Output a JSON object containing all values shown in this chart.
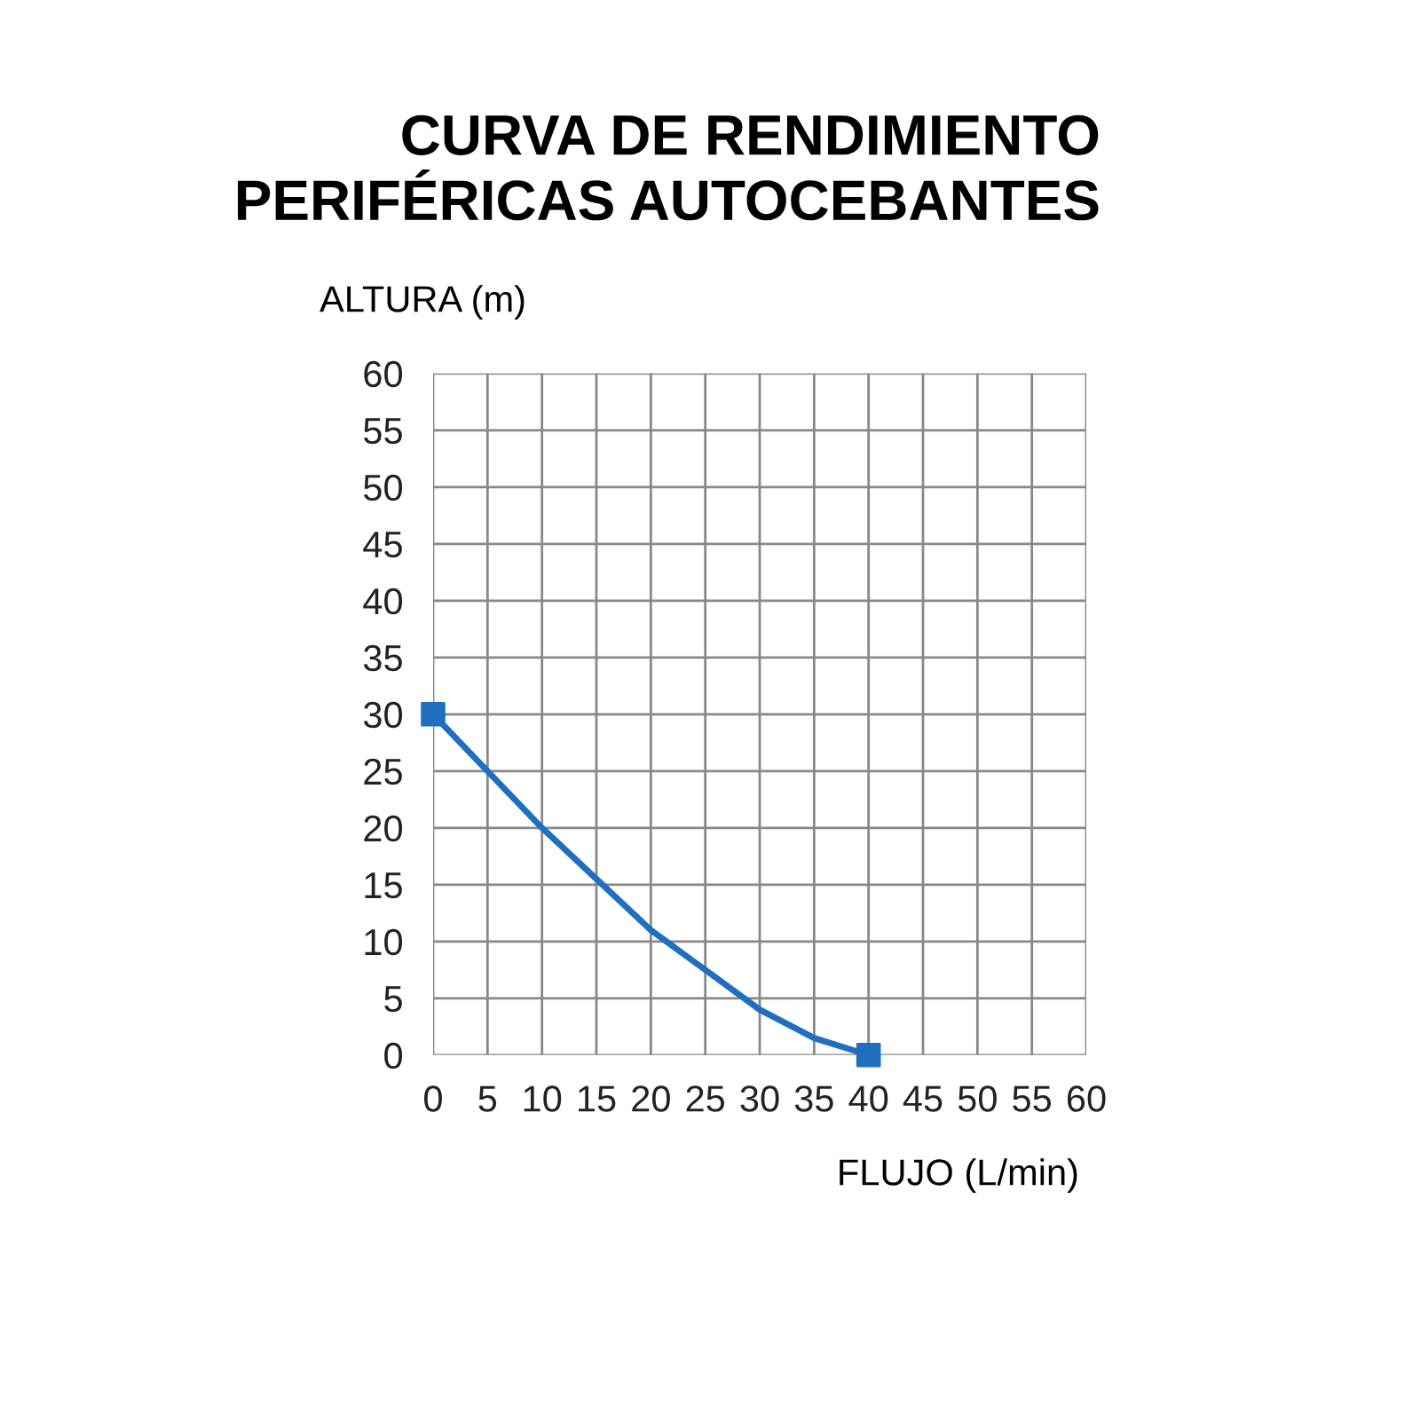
{
  "chart_data": {
    "type": "line",
    "title": "CURVA DE RENDIMIENTO\nPERIFÉRICAS AUTOCEBANTES",
    "xlabel": "FLUJO (L/min)",
    "ylabel": "ALTURA (m)",
    "series": [
      {
        "color": "#1f6fc0",
        "x": [
          0,
          5,
          10,
          15,
          20,
          25,
          30,
          35,
          40
        ],
        "values": [
          30,
          25,
          20,
          15.5,
          11,
          7.5,
          4,
          1.5,
          0
        ],
        "marker": "none"
      },
      {
        "type": "scatter",
        "color": "#1f6fc0",
        "x": [
          0,
          40
        ],
        "values": [
          30,
          0
        ],
        "marker": "square"
      }
    ],
    "xlim": [
      0,
      60
    ],
    "ylim": [
      0,
      60
    ],
    "xticks": [
      0,
      5,
      10,
      15,
      20,
      25,
      30,
      35,
      40,
      45,
      50,
      55,
      60
    ],
    "yticks": [
      0,
      5,
      10,
      15,
      20,
      25,
      30,
      35,
      40,
      45,
      50,
      55,
      60
    ],
    "grid": true
  }
}
